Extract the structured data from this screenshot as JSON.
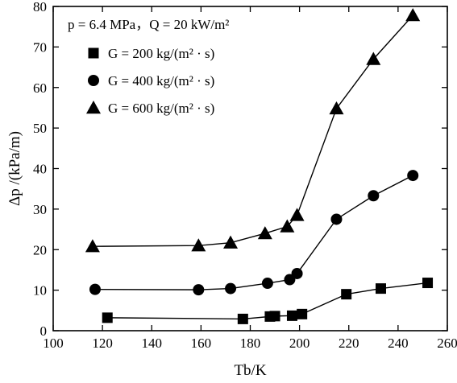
{
  "chart_data": {
    "type": "line",
    "xlabel": "Tb/K",
    "ylabel": "Δp /(kPa/m)",
    "xlim": [
      100,
      260
    ],
    "ylim": [
      0,
      80
    ],
    "xticks": [
      100,
      120,
      140,
      160,
      180,
      200,
      220,
      240,
      260
    ],
    "yticks": [
      0,
      10,
      20,
      30,
      40,
      50,
      60,
      70,
      80
    ],
    "grid": false,
    "legend_position": "top-left",
    "legend_title": "p = 6.4 MPa，Q = 20 kW/m²",
    "series": [
      {
        "name": "G = 200 kg/(m² · s)",
        "marker": "square",
        "x": [
          122,
          177,
          188,
          190,
          197,
          201,
          219,
          233,
          252
        ],
        "y": [
          3.2,
          2.9,
          3.5,
          3.6,
          3.7,
          4.1,
          9.0,
          10.4,
          11.8
        ]
      },
      {
        "name": "G = 400 kg/(m² · s)",
        "marker": "circle",
        "x": [
          117,
          159,
          172,
          187,
          196,
          199,
          215,
          230,
          246
        ],
        "y": [
          10.2,
          10.1,
          10.4,
          11.7,
          12.6,
          14.1,
          27.5,
          33.3,
          38.3
        ]
      },
      {
        "name": "G = 600 kg/(m² · s)",
        "marker": "triangle",
        "x": [
          116,
          159,
          172,
          186,
          195,
          199,
          215,
          230,
          246
        ],
        "y": [
          20.8,
          21.0,
          21.7,
          24.0,
          25.7,
          28.5,
          54.8,
          67.0,
          77.8
        ]
      }
    ]
  }
}
